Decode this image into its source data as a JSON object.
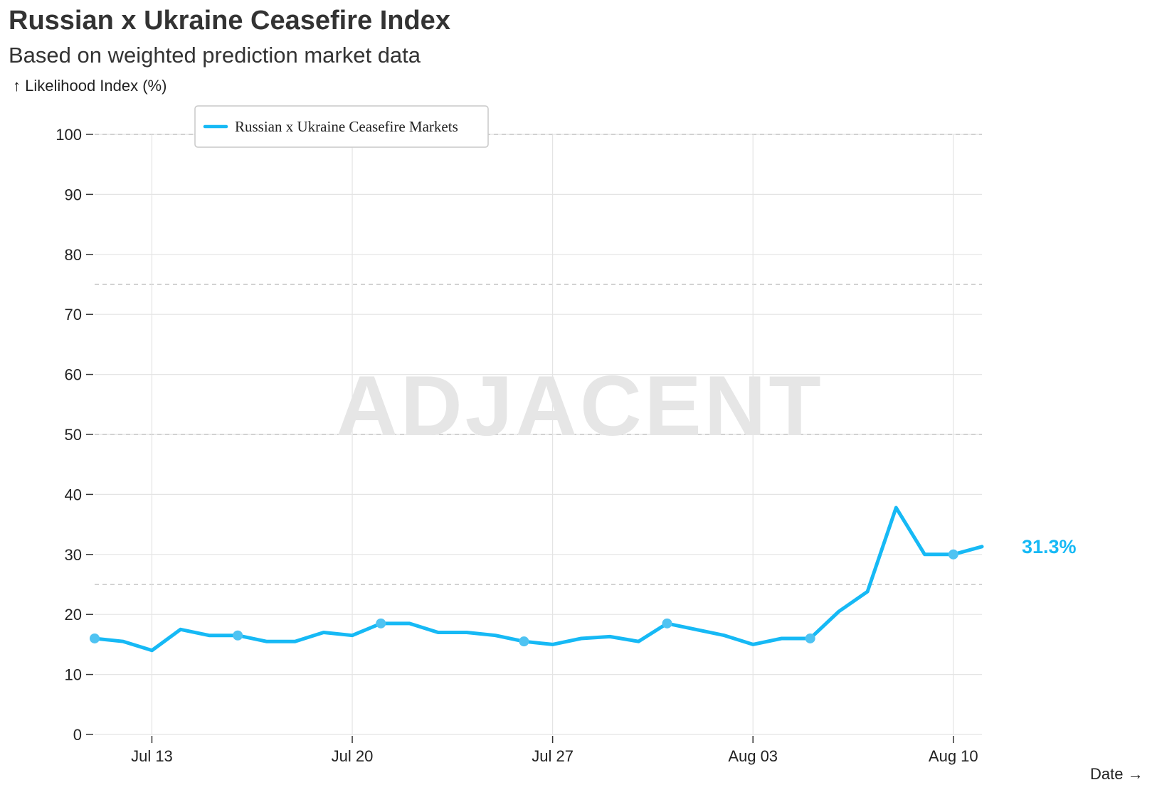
{
  "chart_data": {
    "type": "line",
    "title": "Russian x Ukraine Ceasefire Index",
    "subtitle": "Based on weighted prediction market data",
    "ylabel": "↑ Likelihood Index (%)",
    "xlabel": "Date →",
    "ylim": [
      0,
      100
    ],
    "y_ticks": [
      "0",
      "10",
      "20",
      "30",
      "40",
      "50",
      "60",
      "70",
      "80",
      "90",
      "100"
    ],
    "y_tick_values": [
      0,
      10,
      20,
      30,
      40,
      50,
      60,
      70,
      80,
      90,
      100
    ],
    "reference_lines": [
      25,
      50,
      75,
      100
    ],
    "x_ticks": [
      {
        "label": "Jul 13",
        "date": "2025-07-13"
      },
      {
        "label": "Jul 20",
        "date": "2025-07-20"
      },
      {
        "label": "Jul 27",
        "date": "2025-07-27"
      },
      {
        "label": "Aug 03",
        "date": "2025-08-03"
      },
      {
        "label": "Aug 10",
        "date": "2025-08-10"
      }
    ],
    "xlim": [
      "2025-07-11",
      "2025-08-11"
    ],
    "grid": true,
    "legend_position": "top-left",
    "watermark": "ADJACENT",
    "end_label": "31.3%",
    "series": [
      {
        "name": "Russian x Ukraine Ceasefire Markets",
        "color": "#16b9f5",
        "marker_color": "#4fc3f2",
        "points": [
          {
            "x": "2025-07-11",
            "y": 16,
            "marker": true
          },
          {
            "x": "2025-07-12",
            "y": 15.5
          },
          {
            "x": "2025-07-13",
            "y": 14
          },
          {
            "x": "2025-07-14",
            "y": 17.5
          },
          {
            "x": "2025-07-15",
            "y": 16.5
          },
          {
            "x": "2025-07-16",
            "y": 16.5,
            "marker": true
          },
          {
            "x": "2025-07-17",
            "y": 15.5
          },
          {
            "x": "2025-07-18",
            "y": 15.5
          },
          {
            "x": "2025-07-19",
            "y": 17
          },
          {
            "x": "2025-07-20",
            "y": 16.5
          },
          {
            "x": "2025-07-21",
            "y": 18.5,
            "marker": true
          },
          {
            "x": "2025-07-22",
            "y": 18.5
          },
          {
            "x": "2025-07-23",
            "y": 17
          },
          {
            "x": "2025-07-24",
            "y": 17
          },
          {
            "x": "2025-07-25",
            "y": 16.5
          },
          {
            "x": "2025-07-26",
            "y": 15.5,
            "marker": true
          },
          {
            "x": "2025-07-27",
            "y": 15
          },
          {
            "x": "2025-07-28",
            "y": 16
          },
          {
            "x": "2025-07-29",
            "y": 16.3
          },
          {
            "x": "2025-07-30",
            "y": 15.5
          },
          {
            "x": "2025-07-31",
            "y": 18.5,
            "marker": true
          },
          {
            "x": "2025-08-01",
            "y": 17.5
          },
          {
            "x": "2025-08-02",
            "y": 16.5
          },
          {
            "x": "2025-08-03",
            "y": 15
          },
          {
            "x": "2025-08-04",
            "y": 16
          },
          {
            "x": "2025-08-05",
            "y": 16,
            "marker": true
          },
          {
            "x": "2025-08-06",
            "y": 20.5
          },
          {
            "x": "2025-08-07",
            "y": 23.8
          },
          {
            "x": "2025-08-08",
            "y": 37.8
          },
          {
            "x": "2025-08-09",
            "y": 30
          },
          {
            "x": "2025-08-10",
            "y": 30,
            "marker": true
          },
          {
            "x": "2025-08-11",
            "y": 31.3
          }
        ]
      }
    ]
  }
}
